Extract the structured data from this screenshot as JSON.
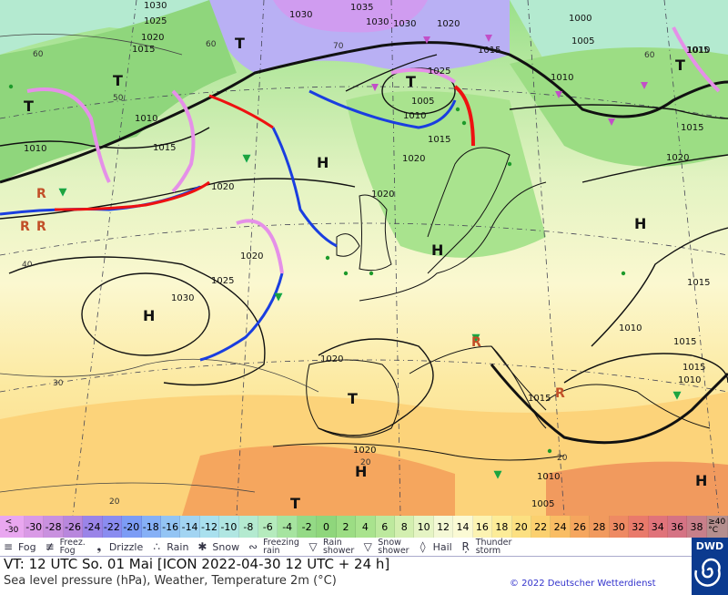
{
  "map": {
    "pressure_labels": [
      "1030",
      "1025",
      "1020",
      "1015",
      "1015",
      "1030",
      "1035",
      "1030",
      "1020",
      "1015",
      "1000",
      "1005",
      "1010",
      "1010",
      "1015",
      "1010",
      "1015",
      "1010",
      "1005",
      "1010",
      "1015",
      "1020",
      "1025",
      "1020",
      "1030",
      "1020",
      "1025",
      "1020",
      "1020",
      "1015",
      "1020",
      "1015",
      "1010",
      "1015",
      "1010",
      "1020",
      "1010",
      "1005",
      "1030",
      "1015"
    ],
    "highs": [
      "H",
      "H",
      "H",
      "H",
      "H",
      "H"
    ],
    "lows": [
      "T",
      "T",
      "T",
      "T",
      "T",
      "T",
      "T"
    ],
    "temp_labels": [
      "60",
      "50",
      "70",
      "60",
      "40",
      "30",
      "20",
      "20",
      "20",
      "60"
    ]
  },
  "scale": {
    "values": [
      "<\n-30",
      "-30",
      "-28",
      "-26",
      "-24",
      "-22",
      "-20",
      "-18",
      "-16",
      "-14",
      "-12",
      "-10",
      "-8",
      "-6",
      "-4",
      "-2",
      "0",
      "2",
      "4",
      "6",
      "8",
      "10",
      "12",
      "14",
      "16",
      "18",
      "20",
      "22",
      "24",
      "26",
      "28",
      "30",
      "32",
      "34",
      "36",
      "38",
      "≥40\n°C"
    ],
    "colors": [
      "#e9a7f0",
      "#d99ae6",
      "#c991df",
      "#b887dd",
      "#9a84e8",
      "#8a8cf0",
      "#7c9cf5",
      "#86b0f6",
      "#93c4f4",
      "#a2d4f2",
      "#a9e0ee",
      "#b0e6e2",
      "#b4ead0",
      "#b5ebbd",
      "#a6e4a0",
      "#94da86",
      "#8fd67c",
      "#9cdd84",
      "#a9e38e",
      "#bde99e",
      "#d3efb0",
      "#e5f4c4",
      "#f4f8d6",
      "#fbfad4",
      "#fcf3b2",
      "#fcec98",
      "#fce081",
      "#fbd06f",
      "#f9bd64",
      "#f5a65e",
      "#f19a5e",
      "#ee8a63",
      "#e97a6b",
      "#e0737a",
      "#d57384",
      "#c87f8a",
      "#b48e8e"
    ]
  },
  "legend": [
    {
      "icon": "fog-icon",
      "sym": "≡",
      "label": "Fog"
    },
    {
      "icon": "freezing-fog-icon",
      "sym": "≢",
      "label": "Freez.\nFog"
    },
    {
      "icon": "drizzle-icon",
      "sym": "❟",
      "label": "Drizzle"
    },
    {
      "icon": "rain-icon",
      "sym": "∴",
      "label": "Rain"
    },
    {
      "icon": "snow-icon",
      "sym": "✱",
      "label": "Snow"
    },
    {
      "icon": "freezing-rain-icon",
      "sym": "∾",
      "label": "Freezing\nrain"
    },
    {
      "icon": "rain-shower-icon",
      "sym": "▽",
      "label": "Rain\nshower"
    },
    {
      "icon": "snow-shower-icon",
      "sym": "▽",
      "label": "Snow\nshower"
    },
    {
      "icon": "hail-icon",
      "sym": "◊",
      "label": "Hail"
    },
    {
      "icon": "thunderstorm-icon",
      "sym": "Ŗ",
      "label": "Thunder\nstorm"
    }
  ],
  "info": {
    "valid_time": "VT: 12 UTC So.  01 Mai [ICON 2022-04-30  12 UTC + 24 h]",
    "subtitle": "Sea level pressure (hPa), Weather, Temperature 2m (°C)",
    "copyright": "© 2022 Deutscher Wetterdienst",
    "logo_text": "DWD"
  },
  "colors": {
    "cold_front": "#1a3ee0",
    "warm_front": "#e11",
    "occlusion": "#e590e8",
    "isobar": "#111"
  }
}
